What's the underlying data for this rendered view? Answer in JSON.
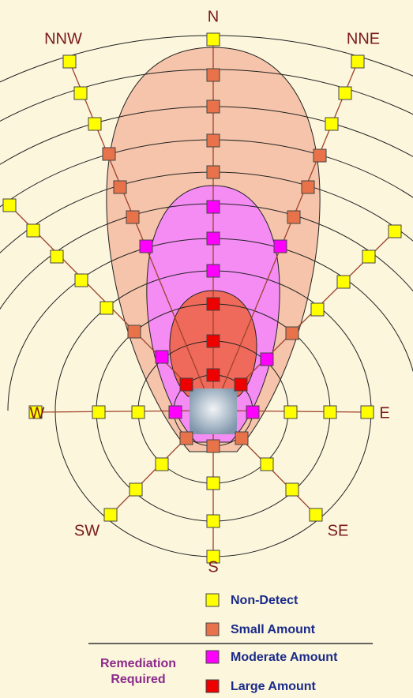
{
  "directions": {
    "n": "N",
    "nnw": "NNW",
    "nne": "NNE",
    "w": "W",
    "e": "E",
    "sw": "SW",
    "se": "SE",
    "s": "S"
  },
  "legend": {
    "items": [
      "Non-Detect",
      "Small Amount",
      "Moderate Amount",
      "Large Amount"
    ],
    "remediation": [
      "Remediation",
      "Required"
    ]
  }
}
